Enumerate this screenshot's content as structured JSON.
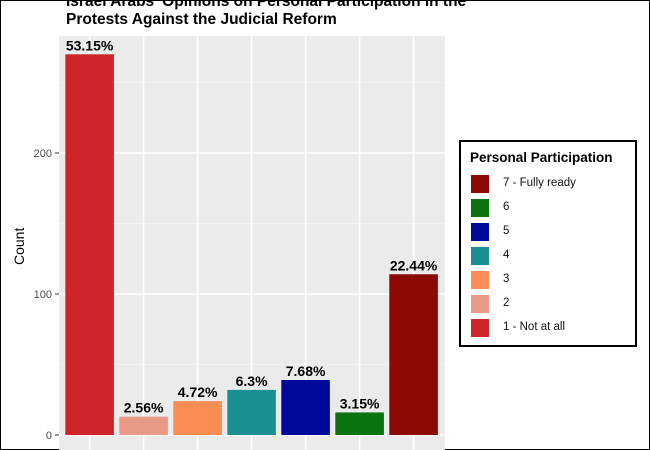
{
  "chart": {
    "title_line1": "Israel Arabs' Opinions on Personal Participation in the",
    "title_line2": "Protests Against the Judicial Reform",
    "ylabel": "Count",
    "legend_title": "Personal Participation"
  },
  "chart_data": {
    "type": "bar",
    "title": "Israel Arabs' Opinions on Personal Participation in the Protests Against the Judicial Reform",
    "xlabel": "",
    "ylabel": "Count",
    "ylim": [
      0,
      290
    ],
    "y_ticks": [
      0,
      100,
      200
    ],
    "grid": true,
    "legend_position": "right",
    "categories": [
      "1 - Not at all",
      "2",
      "3",
      "4",
      "5",
      "6",
      "7 - Fully ready"
    ],
    "values": [
      270,
      13,
      24,
      32,
      39,
      16,
      114
    ],
    "labels": [
      "53.15%",
      "2.56%",
      "4.72%",
      "6.3%",
      "7.68%",
      "3.15%",
      "22.44%"
    ],
    "colors": [
      "#D0232A",
      "#E99A86",
      "#F98D54",
      "#1B9092",
      "#00099A",
      "#0B7310",
      "#8B0A03"
    ],
    "legend": [
      {
        "label": "7 - Fully ready",
        "color": "#8B0A03"
      },
      {
        "label": "6",
        "color": "#0B7310"
      },
      {
        "label": "5",
        "color": "#00099A"
      },
      {
        "label": "4",
        "color": "#1B9092"
      },
      {
        "label": "3",
        "color": "#F98D54"
      },
      {
        "label": "2",
        "color": "#E99A86"
      },
      {
        "label": "1 - Not at all",
        "color": "#D0232A"
      }
    ]
  }
}
